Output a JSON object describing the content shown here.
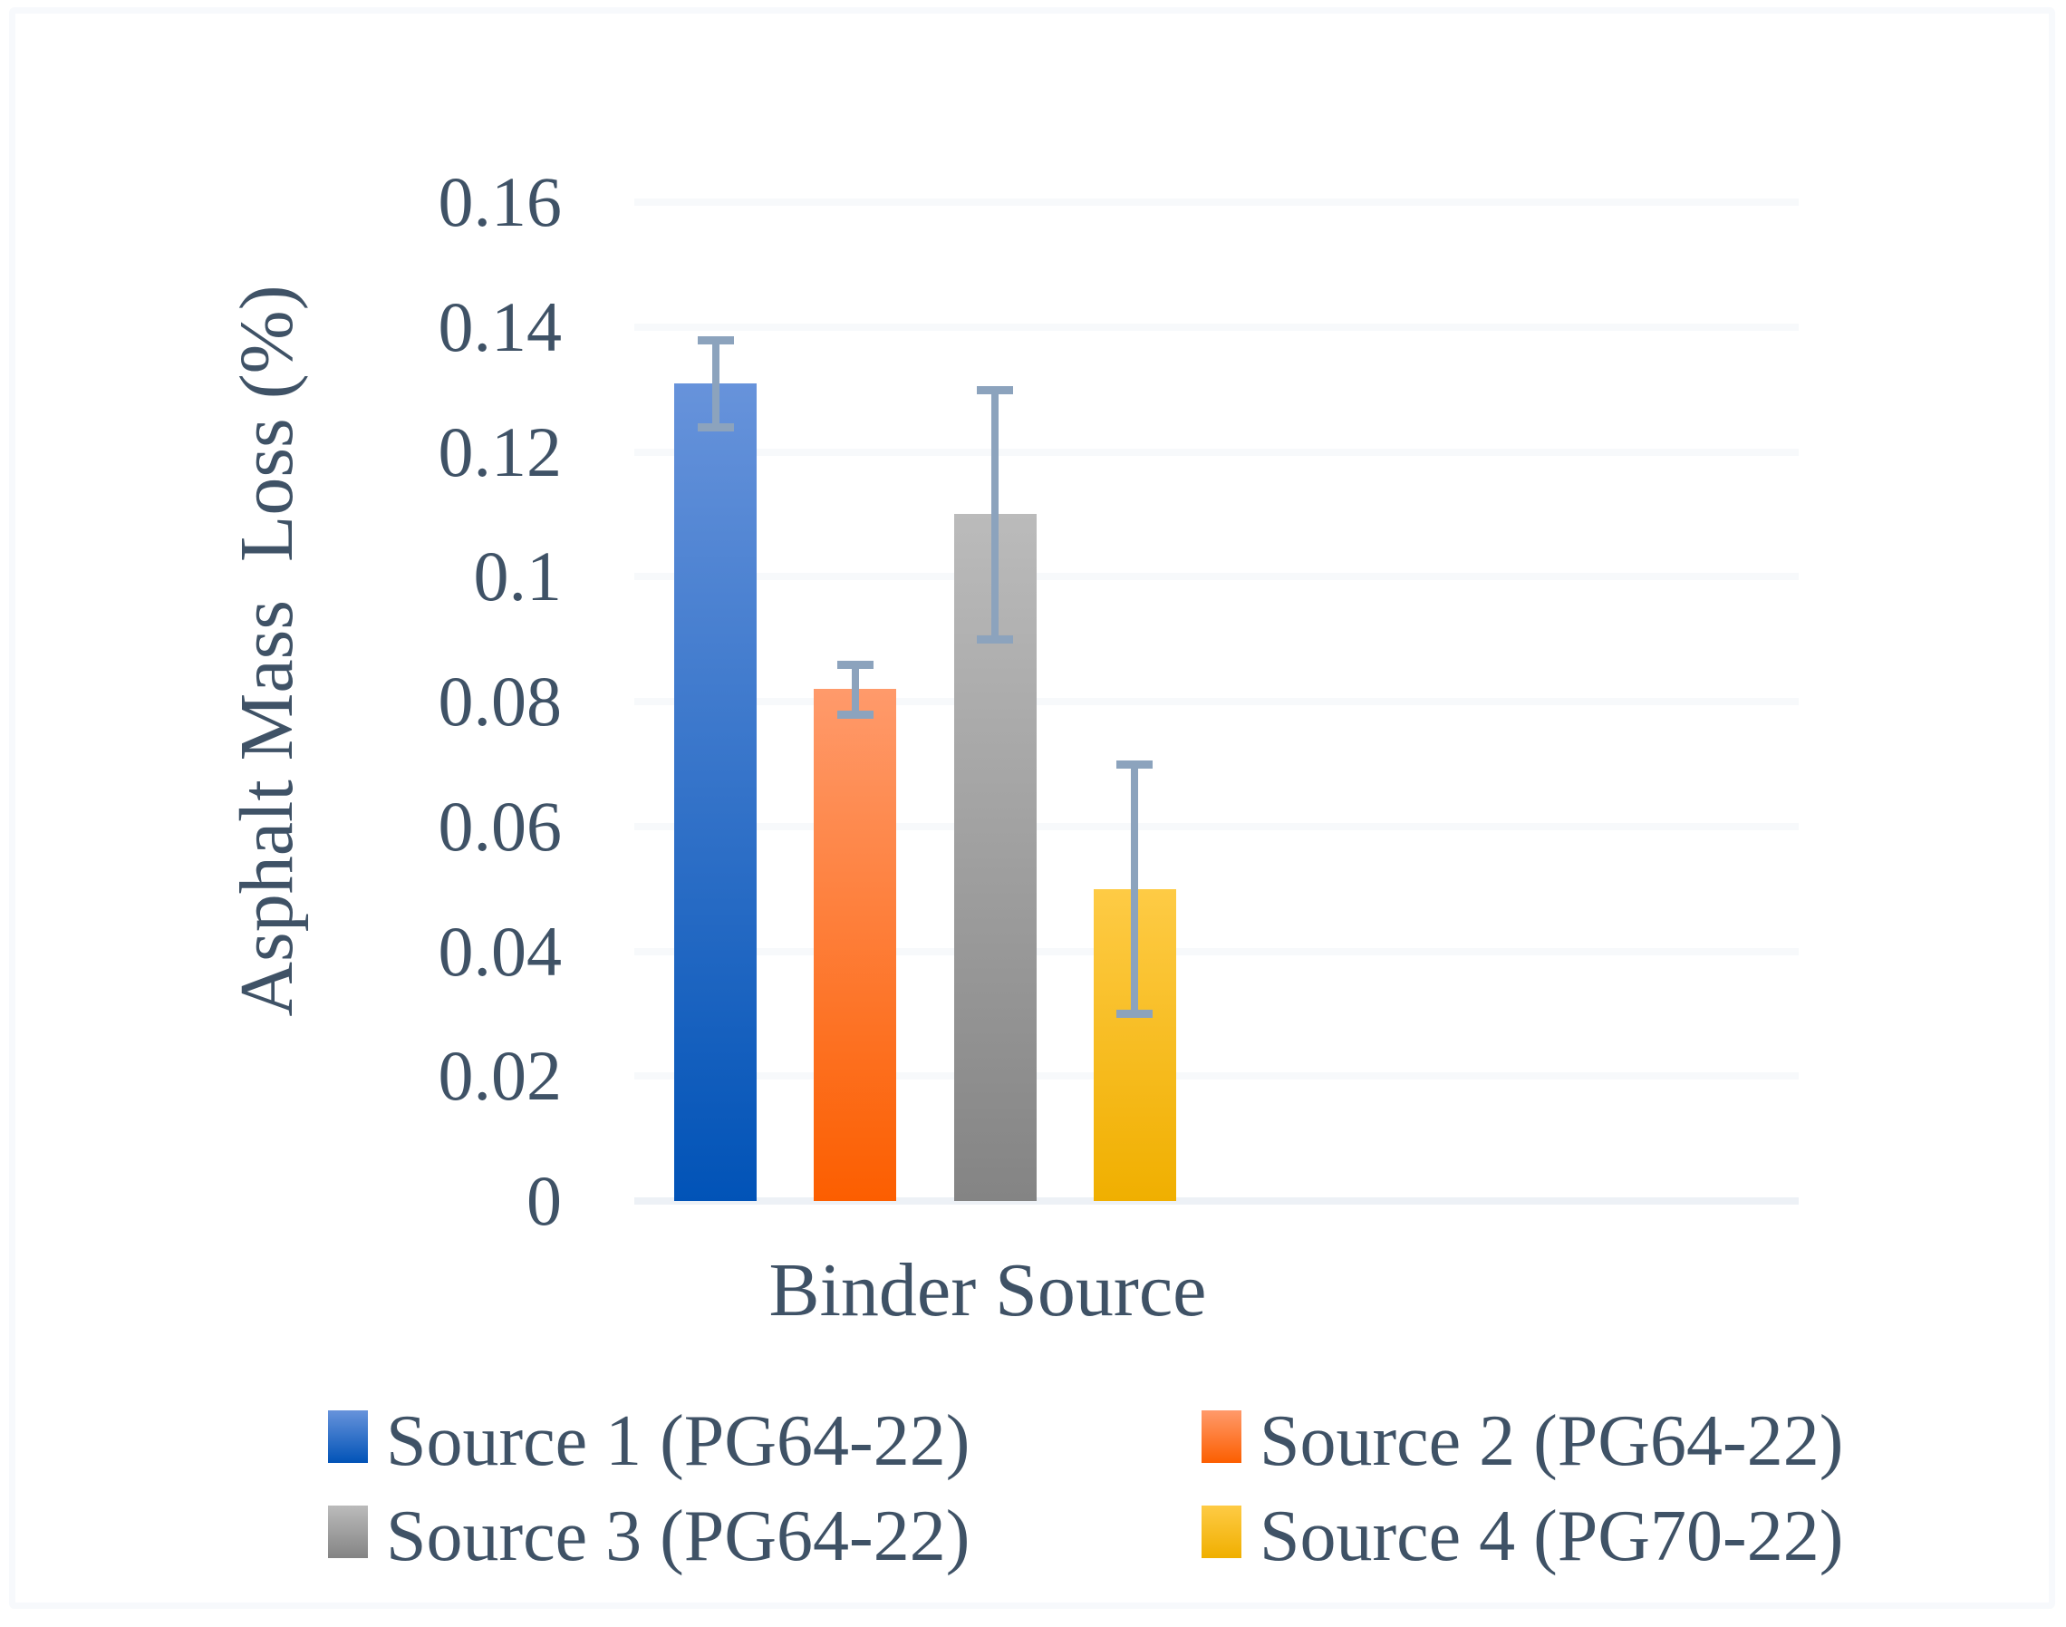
{
  "chart_data": {
    "type": "bar",
    "title": "",
    "xlabel": "Binder Source",
    "ylabel": "Asphalt Mass  Loss (%)",
    "ylim": [
      0,
      0.16
    ],
    "yticks": [
      0,
      0.02,
      0.04,
      0.06,
      0.08,
      0.1,
      0.12,
      0.14,
      0.16
    ],
    "ytick_labels": [
      "0",
      "0.02",
      "0.04",
      "0.06",
      "0.08",
      "0.1",
      "0.12",
      "0.14",
      "0.16"
    ],
    "grid": true,
    "legend_position": "bottom",
    "categories": [
      "Binder Source"
    ],
    "series": [
      {
        "name": "Source 1 (PG64-22)",
        "value": 0.131,
        "error": 0.007,
        "color_top": "#6793DB",
        "color_bottom": "#0153B7"
      },
      {
        "name": "Source 2 (PG64-22)",
        "value": 0.082,
        "error": 0.004,
        "color_top": "#FF9A6B",
        "color_bottom": "#FC5E00"
      },
      {
        "name": "Source 3 (PG64-22)",
        "value": 0.11,
        "error": 0.02,
        "color_top": "#BBBBBB",
        "color_bottom": "#848484"
      },
      {
        "name": "Source 4 (PG70-22)",
        "value": 0.05,
        "error": 0.02,
        "color_top": "#FECB45",
        "color_bottom": "#F0AF00"
      }
    ],
    "colors": {
      "text": "#3F5266",
      "gridline": "#F7F9FB",
      "baseline": "#EDF1F6",
      "error_bar": "#8CA3BD",
      "background": "#FFFFFF",
      "frame": "#F7F9FC"
    }
  }
}
